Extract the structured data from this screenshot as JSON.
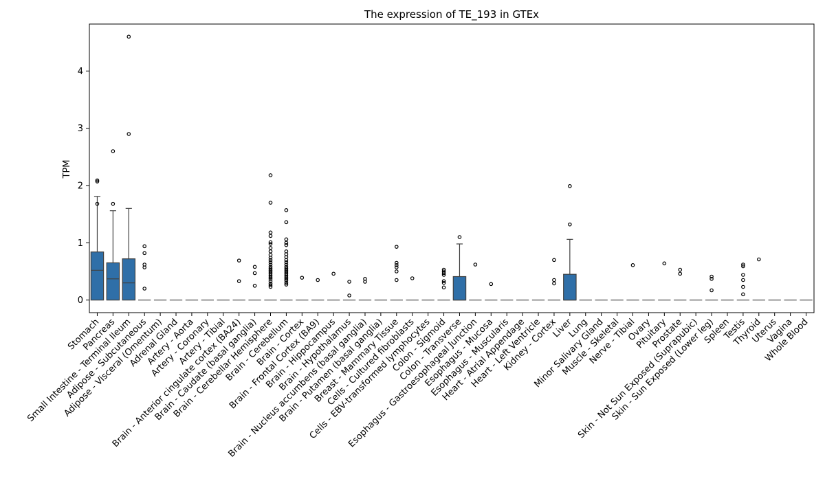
{
  "chart_data": {
    "type": "box",
    "title": "The expression of TE_193 in GTEx",
    "xlabel": "",
    "ylabel": "TPM",
    "ylim": [
      -0.22,
      4.82
    ],
    "yticks": [
      0,
      1,
      2,
      3,
      4
    ],
    "box_color": "#2f6fa8",
    "categories": [
      "Stomach",
      "Pancreas",
      "Small Intestine - Terminal Ileum",
      "Adipose - Subcutaneous",
      "Adipose - Visceral (Omentum)",
      "Adrenal Gland",
      "Artery - Aorta",
      "Artery - Coronary",
      "Artery - Tibial",
      "Brain - Anterior cingulate cortex (BA24)",
      "Brain - Caudate (basal ganglia)",
      "Brain - Cerebellar Hemisphere",
      "Brain - Cerebellum",
      "Brain - Cortex",
      "Brain - Frontal Cortex (BA9)",
      "Brain - Hippocampus",
      "Brain - Hypothalamus",
      "Brain - Nucleus accumbens (basal ganglia)",
      "Brain - Putamen (basal ganglia)",
      "Breast - Mammary Tissue",
      "Cells - Cultured fibroblasts",
      "Cells - EBV-transformed lymphocytes",
      "Colon - Sigmoid",
      "Colon - Transverse",
      "Esophagus - Gastroesophageal Junction",
      "Esophagus - Mucosa",
      "Esophagus - Muscularis",
      "Heart - Atrial Appendage",
      "Heart - Left Ventricle",
      "Kidney - Cortex",
      "Liver",
      "Lung",
      "Minor Salivary Gland",
      "Muscle - Skeletal",
      "Nerve - Tibial",
      "Ovary",
      "Pituitary",
      "Prostate",
      "Skin - Not Sun Exposed (Suprapubic)",
      "Skin - Sun Exposed (Lower leg)",
      "Spleen",
      "Testis",
      "Thyroid",
      "Uterus",
      "Vagina",
      "Whole Blood"
    ],
    "boxes": [
      {
        "q1": 0,
        "median": 0.52,
        "q3": 0.84,
        "whislo": 0,
        "whishi": 1.81,
        "fliers": [
          2.09,
          2.07,
          1.68
        ]
      },
      {
        "q1": 0,
        "median": 0.37,
        "q3": 0.65,
        "whislo": 0,
        "whishi": 1.56,
        "fliers": [
          2.6,
          1.68
        ]
      },
      {
        "q1": 0,
        "median": 0.3,
        "q3": 0.72,
        "whislo": 0,
        "whishi": 1.6,
        "fliers": [
          4.6,
          2.9
        ]
      },
      {
        "q1": 0,
        "median": 0,
        "q3": 0,
        "whislo": 0,
        "whishi": 0,
        "fliers": [
          0.94,
          0.82,
          0.62,
          0.57,
          0.2
        ]
      },
      {
        "q1": 0,
        "median": 0,
        "q3": 0,
        "whislo": 0,
        "whishi": 0,
        "fliers": []
      },
      {
        "q1": 0,
        "median": 0,
        "q3": 0,
        "whislo": 0,
        "whishi": 0,
        "fliers": []
      },
      {
        "q1": 0,
        "median": 0,
        "q3": 0,
        "whislo": 0,
        "whishi": 0,
        "fliers": []
      },
      {
        "q1": 0,
        "median": 0,
        "q3": 0,
        "whislo": 0,
        "whishi": 0,
        "fliers": []
      },
      {
        "q1": 0,
        "median": 0,
        "q3": 0,
        "whislo": 0,
        "whishi": 0,
        "fliers": []
      },
      {
        "q1": 0,
        "median": 0,
        "q3": 0,
        "whislo": 0,
        "whishi": 0,
        "fliers": [
          0.69,
          0.33
        ]
      },
      {
        "q1": 0,
        "median": 0,
        "q3": 0,
        "whislo": 0,
        "whishi": 0,
        "fliers": [
          0.58,
          0.47,
          0.25
        ]
      },
      {
        "q1": 0,
        "median": 0,
        "q3": 0,
        "whislo": 0,
        "whishi": 0,
        "fliers": [
          2.18,
          1.7,
          1.18,
          1.12,
          1.01,
          0.98,
          0.91,
          0.85,
          0.79,
          0.74,
          0.7,
          0.66,
          0.62,
          0.58,
          0.55,
          0.52,
          0.49,
          0.46,
          0.43,
          0.4,
          0.37,
          0.33,
          0.29,
          0.26,
          0.23
        ]
      },
      {
        "q1": 0,
        "median": 0,
        "q3": 0,
        "whislo": 0,
        "whishi": 0,
        "fliers": [
          1.57,
          1.36,
          1.06,
          1.0,
          0.96,
          0.85,
          0.8,
          0.75,
          0.7,
          0.66,
          0.62,
          0.58,
          0.55,
          0.52,
          0.49,
          0.46,
          0.43,
          0.4,
          0.37,
          0.34,
          0.3,
          0.27
        ]
      },
      {
        "q1": 0,
        "median": 0,
        "q3": 0,
        "whislo": 0,
        "whishi": 0,
        "fliers": [
          0.39
        ]
      },
      {
        "q1": 0,
        "median": 0,
        "q3": 0,
        "whislo": 0,
        "whishi": 0,
        "fliers": [
          0.35
        ]
      },
      {
        "q1": 0,
        "median": 0,
        "q3": 0,
        "whislo": 0,
        "whishi": 0,
        "fliers": [
          0.46
        ]
      },
      {
        "q1": 0,
        "median": 0,
        "q3": 0,
        "whislo": 0,
        "whishi": 0,
        "fliers": [
          0.32,
          0.08
        ]
      },
      {
        "q1": 0,
        "median": 0,
        "q3": 0,
        "whislo": 0,
        "whishi": 0,
        "fliers": [
          0.37,
          0.32
        ]
      },
      {
        "q1": 0,
        "median": 0,
        "q3": 0,
        "whislo": 0,
        "whishi": 0,
        "fliers": []
      },
      {
        "q1": 0,
        "median": 0,
        "q3": 0,
        "whislo": 0,
        "whishi": 0,
        "fliers": [
          0.93,
          0.65,
          0.61,
          0.57,
          0.5,
          0.35
        ]
      },
      {
        "q1": 0,
        "median": 0,
        "q3": 0,
        "whislo": 0,
        "whishi": 0,
        "fliers": [
          0.38
        ]
      },
      {
        "q1": 0,
        "median": 0,
        "q3": 0,
        "whislo": 0,
        "whishi": 0,
        "fliers": []
      },
      {
        "q1": 0,
        "median": 0,
        "q3": 0,
        "whislo": 0,
        "whishi": 0,
        "fliers": [
          0.53,
          0.5,
          0.47,
          0.44,
          0.33,
          0.3,
          0.22
        ]
      },
      {
        "q1": 0,
        "median": 0,
        "q3": 0.41,
        "whislo": 0,
        "whishi": 0.98,
        "fliers": [
          1.1
        ]
      },
      {
        "q1": 0,
        "median": 0,
        "q3": 0,
        "whislo": 0,
        "whishi": 0,
        "fliers": [
          0.62
        ]
      },
      {
        "q1": 0,
        "median": 0,
        "q3": 0,
        "whislo": 0,
        "whishi": 0,
        "fliers": [
          0.28
        ]
      },
      {
        "q1": 0,
        "median": 0,
        "q3": 0,
        "whislo": 0,
        "whishi": 0,
        "fliers": []
      },
      {
        "q1": 0,
        "median": 0,
        "q3": 0,
        "whislo": 0,
        "whishi": 0,
        "fliers": []
      },
      {
        "q1": 0,
        "median": 0,
        "q3": 0,
        "whislo": 0,
        "whishi": 0,
        "fliers": []
      },
      {
        "q1": 0,
        "median": 0,
        "q3": 0,
        "whislo": 0,
        "whishi": 0,
        "fliers": [
          0.7,
          0.35,
          0.29
        ]
      },
      {
        "q1": 0,
        "median": 0,
        "q3": 0.45,
        "whislo": 0,
        "whishi": 1.06,
        "fliers": [
          1.99,
          1.32
        ]
      },
      {
        "q1": 0,
        "median": 0,
        "q3": 0,
        "whislo": 0,
        "whishi": 0,
        "fliers": []
      },
      {
        "q1": 0,
        "median": 0,
        "q3": 0,
        "whislo": 0,
        "whishi": 0,
        "fliers": []
      },
      {
        "q1": 0,
        "median": 0,
        "q3": 0,
        "whislo": 0,
        "whishi": 0,
        "fliers": []
      },
      {
        "q1": 0,
        "median": 0,
        "q3": 0,
        "whislo": 0,
        "whishi": 0,
        "fliers": [
          0.61
        ]
      },
      {
        "q1": 0,
        "median": 0,
        "q3": 0,
        "whislo": 0,
        "whishi": 0,
        "fliers": []
      },
      {
        "q1": 0,
        "median": 0,
        "q3": 0,
        "whislo": 0,
        "whishi": 0,
        "fliers": [
          0.64
        ]
      },
      {
        "q1": 0,
        "median": 0,
        "q3": 0,
        "whislo": 0,
        "whishi": 0,
        "fliers": [
          0.53,
          0.46
        ]
      },
      {
        "q1": 0,
        "median": 0,
        "q3": 0,
        "whislo": 0,
        "whishi": 0,
        "fliers": []
      },
      {
        "q1": 0,
        "median": 0,
        "q3": 0,
        "whislo": 0,
        "whishi": 0,
        "fliers": [
          0.41,
          0.37,
          0.17
        ]
      },
      {
        "q1": 0,
        "median": 0,
        "q3": 0,
        "whislo": 0,
        "whishi": 0,
        "fliers": []
      },
      {
        "q1": 0,
        "median": 0,
        "q3": 0,
        "whislo": 0,
        "whishi": 0,
        "fliers": [
          0.62,
          0.59,
          0.44,
          0.35,
          0.23,
          0.1
        ]
      },
      {
        "q1": 0,
        "median": 0,
        "q3": 0,
        "whislo": 0,
        "whishi": 0,
        "fliers": [
          0.71
        ]
      },
      {
        "q1": 0,
        "median": 0,
        "q3": 0,
        "whislo": 0,
        "whishi": 0,
        "fliers": []
      },
      {
        "q1": 0,
        "median": 0,
        "q3": 0,
        "whislo": 0,
        "whishi": 0,
        "fliers": []
      },
      {
        "q1": 0,
        "median": 0,
        "q3": 0,
        "whislo": 0,
        "whishi": 0,
        "fliers": []
      }
    ]
  }
}
